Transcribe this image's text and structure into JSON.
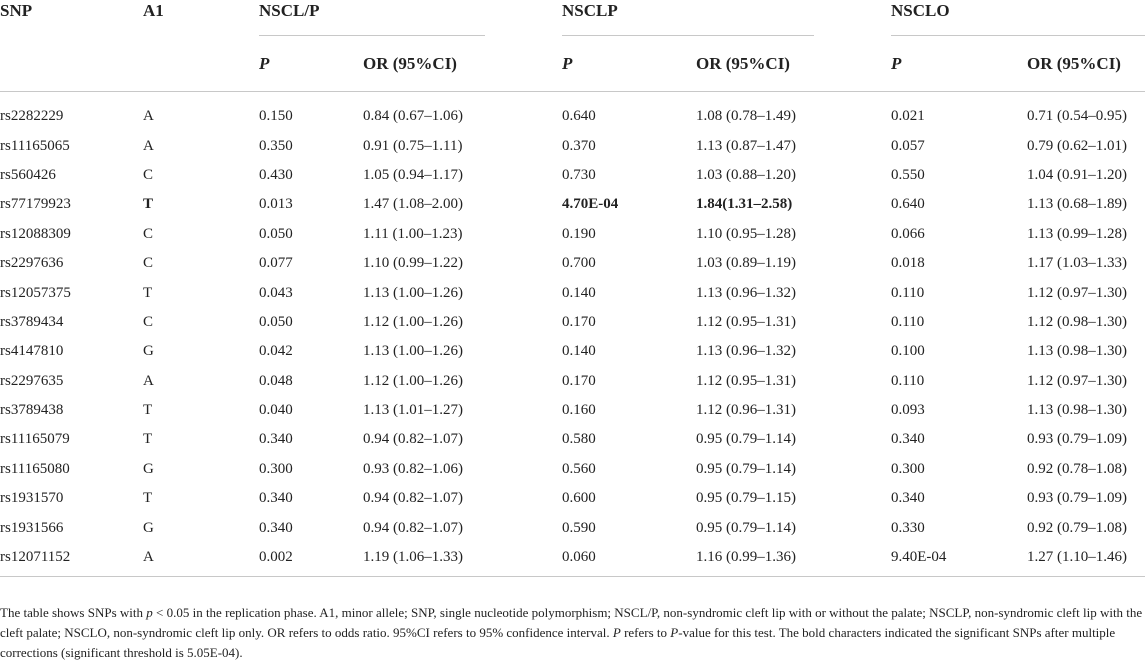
{
  "headers": {
    "snp": "SNP",
    "a1": "A1",
    "groups": [
      "NSCL/P",
      "NSCLP",
      "NSCLO"
    ],
    "p": "P",
    "or": "OR (95%CI)"
  },
  "rows": [
    {
      "snp": "rs2282229",
      "a1": "A",
      "p1": "0.150",
      "or1": "0.84 (0.67–1.06)",
      "p2": "0.640",
      "or2": "1.08 (0.78–1.49)",
      "p3": "0.021",
      "or3": "0.71 (0.54–0.95)"
    },
    {
      "snp": "rs11165065",
      "a1": "A",
      "p1": "0.350",
      "or1": "0.91 (0.75–1.11)",
      "p2": "0.370",
      "or2": "1.13 (0.87–1.47)",
      "p3": "0.057",
      "or3": "0.79 (0.62–1.01)"
    },
    {
      "snp": "rs560426",
      "a1": "C",
      "p1": "0.430",
      "or1": "1.05 (0.94–1.17)",
      "p2": "0.730",
      "or2": "1.03 (0.88–1.20)",
      "p3": "0.550",
      "or3": "1.04 (0.91–1.20)"
    },
    {
      "snp": "rs77179923",
      "a1": "T",
      "p1": "0.013",
      "or1": "1.47 (1.08–2.00)",
      "p2": "4.70E-04",
      "or2": "1.84(1.31–2.58)",
      "p3": "0.640",
      "or3": "1.13 (0.68–1.89)"
    },
    {
      "snp": "rs12088309",
      "a1": "C",
      "p1": "0.050",
      "or1": "1.11 (1.00–1.23)",
      "p2": "0.190",
      "or2": "1.10 (0.95–1.28)",
      "p3": "0.066",
      "or3": "1.13 (0.99–1.28)"
    },
    {
      "snp": "rs2297636",
      "a1": "C",
      "p1": "0.077",
      "or1": "1.10 (0.99–1.22)",
      "p2": "0.700",
      "or2": "1.03 (0.89–1.19)",
      "p3": "0.018",
      "or3": "1.17 (1.03–1.33)"
    },
    {
      "snp": "rs12057375",
      "a1": "T",
      "p1": "0.043",
      "or1": "1.13 (1.00–1.26)",
      "p2": "0.140",
      "or2": "1.13 (0.96–1.32)",
      "p3": "0.110",
      "or3": "1.12 (0.97–1.30)"
    },
    {
      "snp": "rs3789434",
      "a1": "C",
      "p1": "0.050",
      "or1": "1.12 (1.00–1.26)",
      "p2": "0.170",
      "or2": "1.12 (0.95–1.31)",
      "p3": "0.110",
      "or3": "1.12 (0.98–1.30)"
    },
    {
      "snp": "rs4147810",
      "a1": "G",
      "p1": "0.042",
      "or1": "1.13 (1.00–1.26)",
      "p2": "0.140",
      "or2": "1.13 (0.96–1.32)",
      "p3": "0.100",
      "or3": "1.13 (0.98–1.30)"
    },
    {
      "snp": "rs2297635",
      "a1": "A",
      "p1": "0.048",
      "or1": "1.12 (1.00–1.26)",
      "p2": "0.170",
      "or2": "1.12 (0.95–1.31)",
      "p3": "0.110",
      "or3": "1.12 (0.97–1.30)"
    },
    {
      "snp": "rs3789438",
      "a1": "T",
      "p1": "0.040",
      "or1": "1.13 (1.01–1.27)",
      "p2": "0.160",
      "or2": "1.12 (0.96–1.31)",
      "p3": "0.093",
      "or3": "1.13 (0.98–1.30)"
    },
    {
      "snp": "rs11165079",
      "a1": "T",
      "p1": "0.340",
      "or1": "0.94 (0.82–1.07)",
      "p2": "0.580",
      "or2": "0.95 (0.79–1.14)",
      "p3": "0.340",
      "or3": "0.93 (0.79–1.09)"
    },
    {
      "snp": "rs11165080",
      "a1": "G",
      "p1": "0.300",
      "or1": "0.93 (0.82–1.06)",
      "p2": "0.560",
      "or2": "0.95 (0.79–1.14)",
      "p3": "0.300",
      "or3": "0.92 (0.78–1.08)"
    },
    {
      "snp": "rs1931570",
      "a1": "T",
      "p1": "0.340",
      "or1": "0.94 (0.82–1.07)",
      "p2": "0.600",
      "or2": "0.95 (0.79–1.15)",
      "p3": "0.340",
      "or3": "0.93 (0.79–1.09)"
    },
    {
      "snp": "rs1931566",
      "a1": "G",
      "p1": "0.340",
      "or1": "0.94 (0.82–1.07)",
      "p2": "0.590",
      "or2": "0.95 (0.79–1.14)",
      "p3": "0.330",
      "or3": "0.92 (0.79–1.08)"
    },
    {
      "snp": "rs12071152",
      "a1": "A",
      "p1": "0.002",
      "or1": "1.19 (1.06–1.33)",
      "p2": "0.060",
      "or2": "1.16 (0.99–1.36)",
      "p3": "9.40E-04",
      "or3": "1.27 (1.10–1.46)"
    }
  ],
  "bold_cells": [
    {
      "row": 3,
      "col": "a1"
    },
    {
      "row": 3,
      "col": "p2"
    },
    {
      "row": 3,
      "col": "or2"
    }
  ],
  "footnote": {
    "s1": "The table shows SNPs with ",
    "s1_i": "p",
    "s2": " < 0.05 in the replication phase. A1, minor allele; SNP, single nucleotide polymorphism; NSCL/P, non-syndromic cleft lip with or without the palate; NSCLP, non-syndromic cleft lip with the cleft palate; NSCLO, non-syndromic cleft lip only. OR refers to odds ratio. 95%CI refers to 95% confidence interval. ",
    "s2_i": "P",
    "s3": " refers to ",
    "s3_i": "P",
    "s4": "-value for this test. The bold characters indicated the significant SNPs after multiple corrections (significant threshold is 5.05E-04)."
  }
}
